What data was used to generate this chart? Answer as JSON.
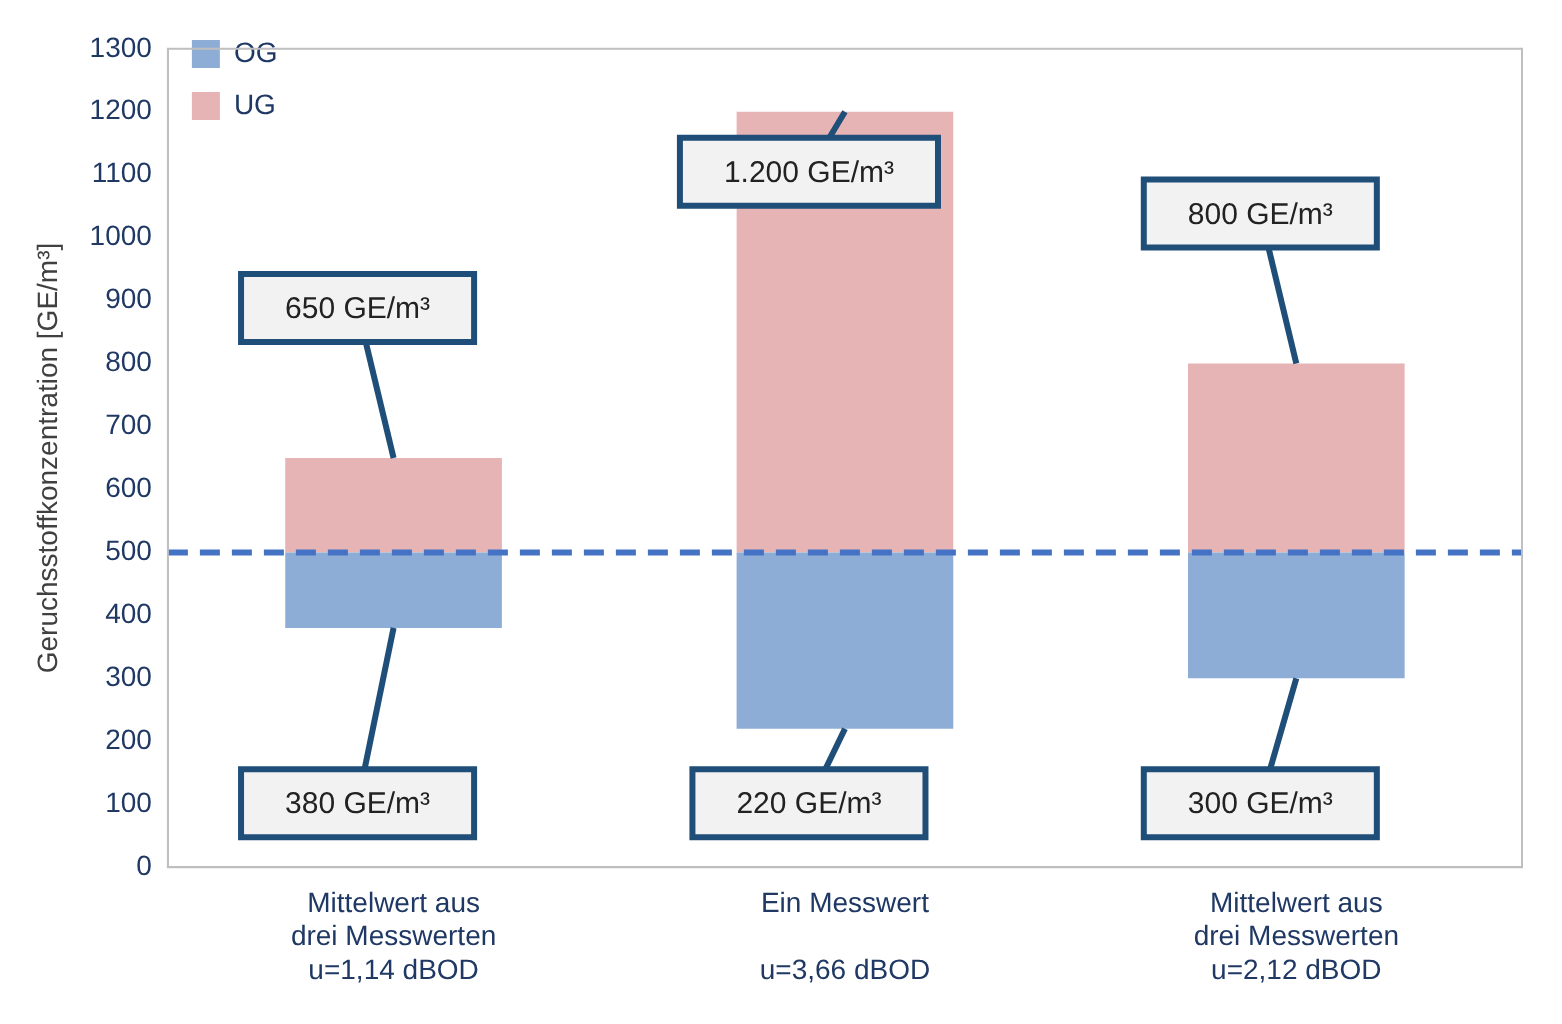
{
  "chart_data": {
    "type": "bar",
    "ylabel": "Geruchsstoffkonzentration [GE/m³]",
    "categories": [
      "Mittelwert aus\ndrei Messwerten\nu=1,14 dBOD",
      "Ein Messwert\n\nu=3,66 dBOD",
      "Mittelwert aus\ndrei Messwerten\nu=2,12 dBOD"
    ],
    "series": [
      {
        "name": "OG",
        "color": "#8eadd6",
        "base": [
          380,
          220,
          300
        ],
        "values": [
          120,
          280,
          200
        ]
      },
      {
        "name": "UG",
        "color": "#e6b4b4",
        "base": [
          500,
          500,
          500
        ],
        "values": [
          150,
          700,
          300
        ]
      }
    ],
    "ylim": [
      0,
      1300
    ],
    "yticks": [
      0,
      100,
      200,
      300,
      400,
      500,
      600,
      700,
      800,
      900,
      1000,
      1100,
      1200,
      1300
    ],
    "grid": false,
    "legend": "top left",
    "ref_lines": [
      {
        "axis": "y",
        "value": 500,
        "color": "#4472c4",
        "line_style": "dashed"
      }
    ],
    "annotations": [
      {
        "text": "650 GE/m³",
        "x": "Mittelwert aus\ndrei Messwerten\nu=1,14 dBOD",
        "y": 650
      },
      {
        "text": "380 GE/m³",
        "x": "Mittelwert aus\ndrei Messwerten\nu=1,14 dBOD",
        "y": 380
      },
      {
        "text": "1.200 GE/m³",
        "x": "Ein Messwert\n\nu=3,66 dBOD",
        "y": 1200
      },
      {
        "text": "220 GE/m³",
        "x": "Ein Messwert\n\nu=3,66 dBOD",
        "y": 220
      },
      {
        "text": "800 GE/m³",
        "x": "Mittelwert aus\ndrei Messwerten\nu=2,12 dBOD",
        "y": 800
      },
      {
        "text": "300 GE/m³",
        "x": "Mittelwert aus\ndrei Messwerten\nu=2,12 dBOD",
        "y": 300
      }
    ]
  }
}
